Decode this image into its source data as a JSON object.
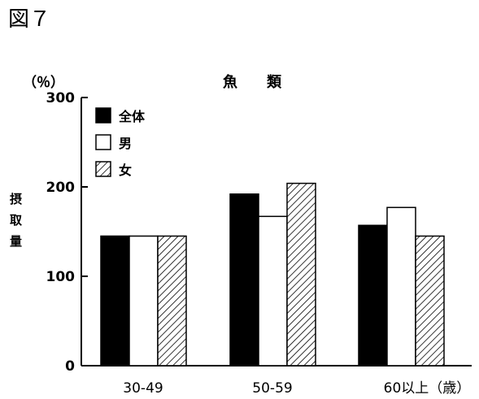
{
  "figure_label": "図７",
  "chart_data": {
    "type": "bar",
    "title": "魚　　類",
    "y_unit_label": "（％）",
    "ylabel": "摂取量",
    "ylim": [
      0,
      300
    ],
    "y_ticks": [
      "0",
      "100",
      "200",
      "300"
    ],
    "grid": false,
    "legend_position": "top-left",
    "categories": [
      "30-49",
      "50-59",
      "60以上（歳）"
    ],
    "series": [
      {
        "name": "全体",
        "values": [
          145,
          192,
          157
        ],
        "fill": "solid",
        "color": "#000000"
      },
      {
        "name": "男",
        "values": [
          145,
          167,
          177
        ],
        "fill": "white",
        "color": "#ffffff"
      },
      {
        "name": "女",
        "values": [
          145,
          204,
          145
        ],
        "fill": "hatched",
        "color": "#000000"
      }
    ]
  }
}
